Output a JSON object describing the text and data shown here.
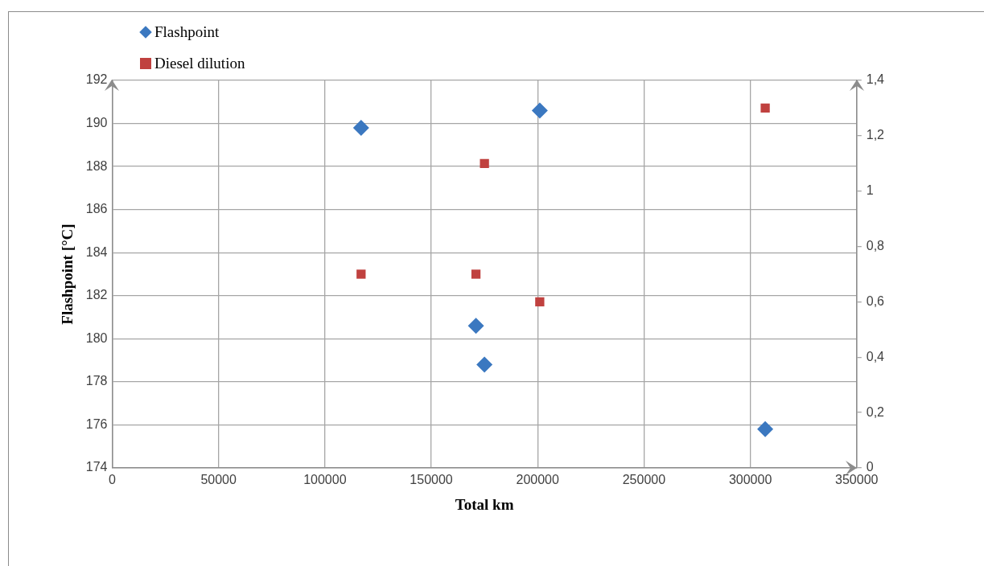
{
  "chart_data": {
    "type": "scatter",
    "xlabel": "Total km",
    "ylabel": "Flashpoint [°C]",
    "xlim": [
      0,
      350000
    ],
    "xticks": [
      0,
      50000,
      100000,
      150000,
      200000,
      250000,
      300000,
      350000
    ],
    "ylim": [
      174,
      192
    ],
    "yticks": [
      174,
      176,
      178,
      180,
      182,
      184,
      186,
      188,
      190,
      192
    ],
    "y2lim": [
      0,
      1.4
    ],
    "y2ticks": [
      0,
      {
        "value": 0.2,
        "label": "0,2"
      },
      {
        "value": 0.4,
        "label": "0,4"
      },
      {
        "value": 0.6,
        "label": "0,6"
      },
      {
        "value": 0.8,
        "label": "0,8"
      },
      1,
      {
        "value": 1.2,
        "label": "1,2"
      },
      {
        "value": 1.4,
        "label": "1,4"
      }
    ],
    "grid": true,
    "legend": "top left",
    "series": [
      {
        "name": "Flashpoint",
        "color": "#3b78c0",
        "marker": "diamond",
        "x": [
          117000,
          201000,
          171000,
          175000,
          307000
        ],
        "values": [
          189.8,
          190.6,
          180.6,
          178.8,
          175.8
        ]
      },
      {
        "name": "Diesel dilution",
        "color": "#c0413f",
        "marker": "square",
        "axis": "y2",
        "x": [
          117000,
          171000,
          175000,
          201000,
          307000
        ],
        "values": [
          0.7,
          0.7,
          1.1,
          0.6,
          1.3
        ]
      }
    ]
  }
}
